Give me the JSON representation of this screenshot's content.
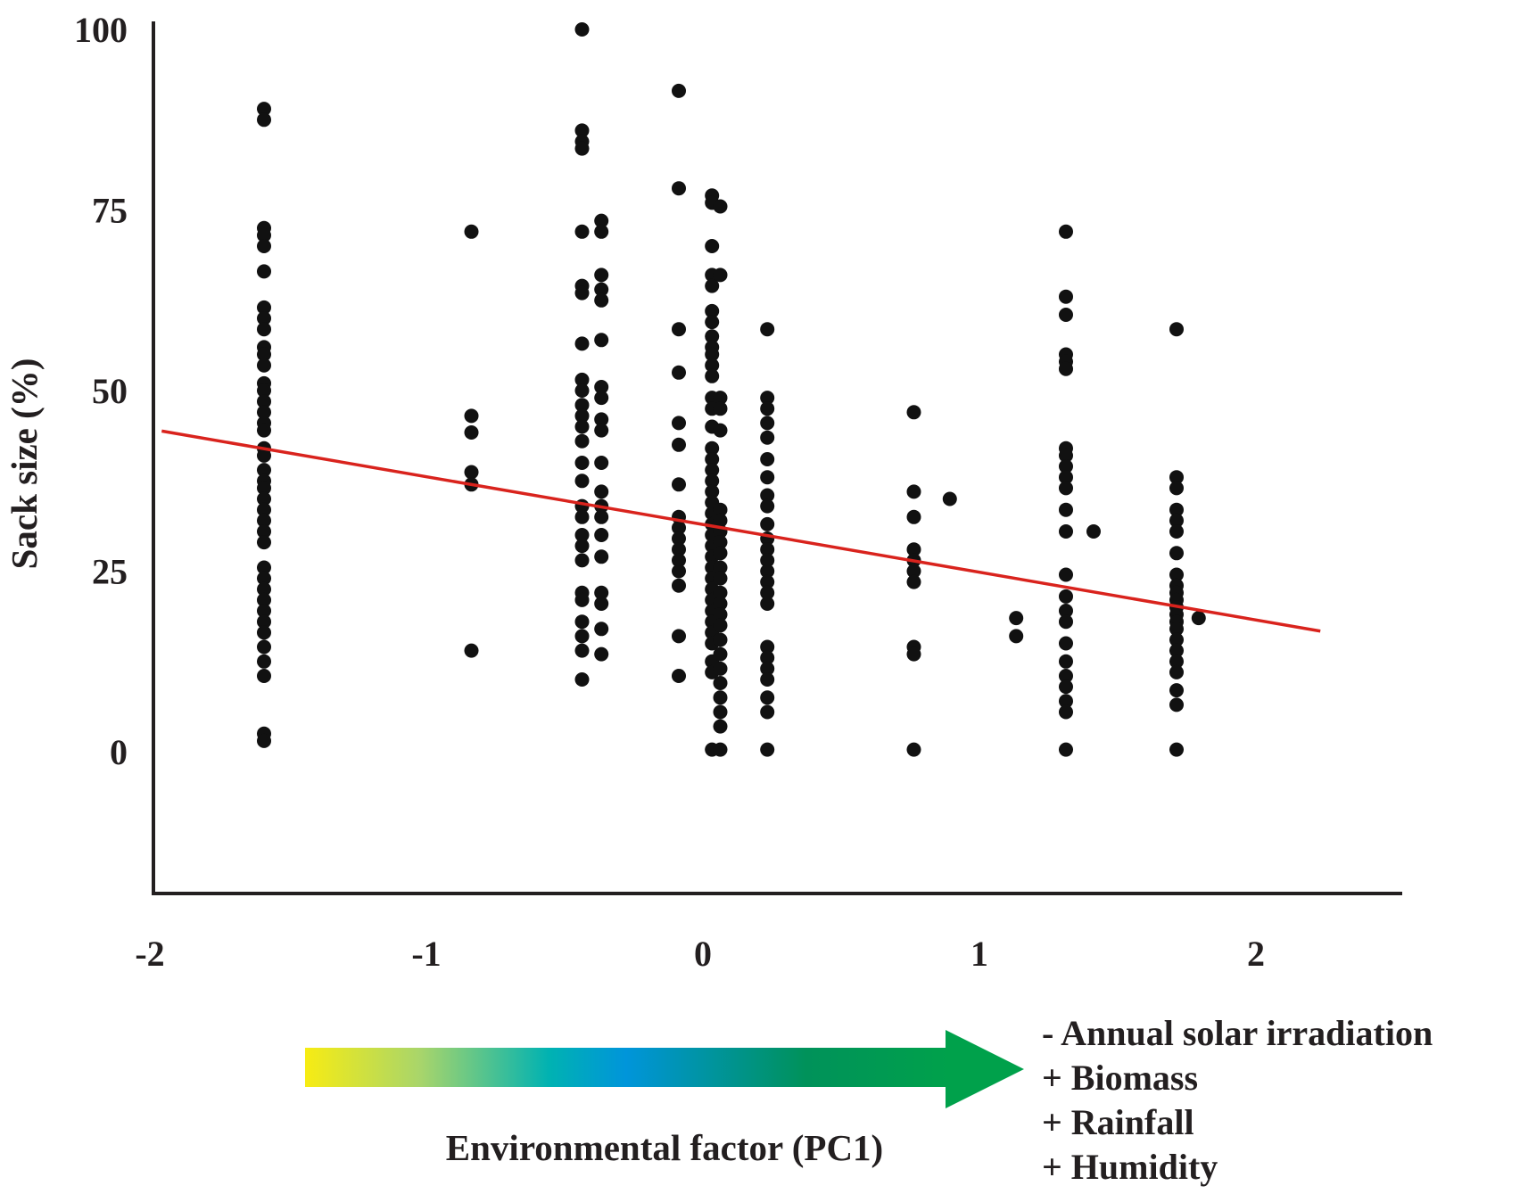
{
  "chart_data": {
    "type": "scatter",
    "title": "",
    "ylabel": "Sack size (%)",
    "xlabel": "Environmental factor (PC1)",
    "xlim": [
      -2,
      2.5
    ],
    "ylim": [
      -20,
      100
    ],
    "x_ticks": [
      -2,
      -1,
      0,
      1,
      2
    ],
    "y_ticks": [
      0,
      25,
      50,
      75,
      100
    ],
    "x_tick_labels": [
      "-2",
      "-1",
      "0",
      "1",
      "2"
    ],
    "y_tick_labels": [
      "0",
      "25",
      "50",
      "75",
      "100"
    ],
    "grid": false,
    "legend": "none",
    "colors": {
      "points": "#111111",
      "trendline": "#d9231d",
      "axes": "#231f20"
    },
    "trendline": {
      "x": [
        -1.97,
        2.22
      ],
      "y": [
        44.4,
        16.7
      ]
    },
    "gradient_arrow": {
      "colors": [
        "#f7ec13",
        "#a8d56b",
        "#00b2b2",
        "#0095da",
        "#00925a",
        "#00a14b"
      ],
      "factors": [
        "- Annual solar irradiation",
        "+ Biomass",
        "+ Rainfall",
        "+ Humidity"
      ]
    },
    "series": [
      {
        "name": "",
        "points": [
          [
            -1.6,
            89
          ],
          [
            -1.6,
            87.5
          ],
          [
            -1.6,
            72.5
          ],
          [
            -1.6,
            71.5
          ],
          [
            -1.6,
            70
          ],
          [
            -1.6,
            66.5
          ],
          [
            -1.6,
            61.5
          ],
          [
            -1.6,
            60
          ],
          [
            -1.6,
            58.5
          ],
          [
            -1.6,
            56
          ],
          [
            -1.6,
            55
          ],
          [
            -1.6,
            53.5
          ],
          [
            -1.6,
            51
          ],
          [
            -1.6,
            50
          ],
          [
            -1.6,
            48.5
          ],
          [
            -1.6,
            47
          ],
          [
            -1.6,
            45.5
          ],
          [
            -1.6,
            44.5
          ],
          [
            -1.6,
            42
          ],
          [
            -1.6,
            41
          ],
          [
            -1.6,
            39
          ],
          [
            -1.6,
            37.5
          ],
          [
            -1.6,
            36.5
          ],
          [
            -1.6,
            35
          ],
          [
            -1.6,
            33.5
          ],
          [
            -1.6,
            32
          ],
          [
            -1.6,
            30.5
          ],
          [
            -1.6,
            29
          ],
          [
            -1.6,
            25.5
          ],
          [
            -1.6,
            24
          ],
          [
            -1.6,
            22.5
          ],
          [
            -1.6,
            21
          ],
          [
            -1.6,
            19.5
          ],
          [
            -1.6,
            18
          ],
          [
            -1.6,
            16.5
          ],
          [
            -1.6,
            14.5
          ],
          [
            -1.6,
            12.5
          ],
          [
            -1.6,
            10.5
          ],
          [
            -1.6,
            2.5
          ],
          [
            -1.6,
            1.5
          ],
          [
            -0.85,
            72
          ],
          [
            -0.85,
            46.5
          ],
          [
            -0.85,
            44.2
          ],
          [
            -0.85,
            38.7
          ],
          [
            -0.85,
            37
          ],
          [
            -0.85,
            14
          ],
          [
            -0.45,
            100
          ],
          [
            -0.45,
            86
          ],
          [
            -0.45,
            84.5
          ],
          [
            -0.45,
            83.5
          ],
          [
            -0.45,
            72
          ],
          [
            -0.45,
            64.5
          ],
          [
            -0.45,
            63.5
          ],
          [
            -0.45,
            56.5
          ],
          [
            -0.45,
            51.5
          ],
          [
            -0.45,
            50
          ],
          [
            -0.45,
            48
          ],
          [
            -0.45,
            46.5
          ],
          [
            -0.45,
            45
          ],
          [
            -0.45,
            43
          ],
          [
            -0.45,
            40
          ],
          [
            -0.45,
            37.5
          ],
          [
            -0.45,
            34
          ],
          [
            -0.45,
            32.5
          ],
          [
            -0.45,
            30
          ],
          [
            -0.45,
            28.5
          ],
          [
            -0.45,
            26.5
          ],
          [
            -0.45,
            22
          ],
          [
            -0.45,
            21
          ],
          [
            -0.45,
            18
          ],
          [
            -0.45,
            16
          ],
          [
            -0.45,
            14
          ],
          [
            -0.45,
            10
          ],
          [
            -0.38,
            73.5
          ],
          [
            -0.38,
            72
          ],
          [
            -0.38,
            66
          ],
          [
            -0.38,
            64
          ],
          [
            -0.38,
            62.5
          ],
          [
            -0.38,
            57
          ],
          [
            -0.38,
            50.5
          ],
          [
            -0.38,
            49
          ],
          [
            -0.38,
            46
          ],
          [
            -0.38,
            44.5
          ],
          [
            -0.38,
            40
          ],
          [
            -0.38,
            36
          ],
          [
            -0.38,
            34
          ],
          [
            -0.38,
            32.5
          ],
          [
            -0.38,
            30
          ],
          [
            -0.38,
            27
          ],
          [
            -0.38,
            22
          ],
          [
            -0.38,
            20.5
          ],
          [
            -0.38,
            17
          ],
          [
            -0.38,
            13.5
          ],
          [
            -0.1,
            91.5
          ],
          [
            -0.1,
            78
          ],
          [
            -0.1,
            58.5
          ],
          [
            -0.1,
            52.5
          ],
          [
            -0.1,
            45.5
          ],
          [
            -0.1,
            42.5
          ],
          [
            -0.1,
            37
          ],
          [
            -0.1,
            32.5
          ],
          [
            -0.1,
            31
          ],
          [
            -0.1,
            29.5
          ],
          [
            -0.1,
            28
          ],
          [
            -0.1,
            26.5
          ],
          [
            -0.1,
            25
          ],
          [
            -0.1,
            23
          ],
          [
            -0.1,
            16
          ],
          [
            -0.1,
            10.5
          ],
          [
            0.02,
            77
          ],
          [
            0.02,
            76
          ],
          [
            0.02,
            70
          ],
          [
            0.02,
            66
          ],
          [
            0.02,
            64.5
          ],
          [
            0.02,
            61
          ],
          [
            0.02,
            59.5
          ],
          [
            0.02,
            57.5
          ],
          [
            0.02,
            56
          ],
          [
            0.02,
            55
          ],
          [
            0.02,
            53.5
          ],
          [
            0.02,
            52
          ],
          [
            0.02,
            49
          ],
          [
            0.02,
            47.5
          ],
          [
            0.02,
            45
          ],
          [
            0.02,
            42
          ],
          [
            0.02,
            40.5
          ],
          [
            0.02,
            39
          ],
          [
            0.02,
            37.5
          ],
          [
            0.02,
            36
          ],
          [
            0.02,
            34.5
          ],
          [
            0.02,
            33
          ],
          [
            0.02,
            31.5
          ],
          [
            0.02,
            30
          ],
          [
            0.02,
            28.5
          ],
          [
            0.02,
            27
          ],
          [
            0.02,
            25.5
          ],
          [
            0.02,
            24
          ],
          [
            0.02,
            22.5
          ],
          [
            0.02,
            21
          ],
          [
            0.02,
            19.5
          ],
          [
            0.02,
            18
          ],
          [
            0.02,
            16.5
          ],
          [
            0.02,
            15
          ],
          [
            0.02,
            12.5
          ],
          [
            0.02,
            11
          ],
          [
            0.02,
            0.3
          ],
          [
            0.05,
            75.5
          ],
          [
            0.05,
            66
          ],
          [
            0.05,
            49
          ],
          [
            0.05,
            47.5
          ],
          [
            0.05,
            44.5
          ],
          [
            0.05,
            33.5
          ],
          [
            0.05,
            32
          ],
          [
            0.05,
            30.5
          ],
          [
            0.05,
            29
          ],
          [
            0.05,
            27.5
          ],
          [
            0.05,
            25.5
          ],
          [
            0.05,
            24
          ],
          [
            0.05,
            22
          ],
          [
            0.05,
            20.5
          ],
          [
            0.05,
            19
          ],
          [
            0.05,
            17.5
          ],
          [
            0.05,
            15.5
          ],
          [
            0.05,
            13.5
          ],
          [
            0.05,
            11.5
          ],
          [
            0.05,
            9.5
          ],
          [
            0.05,
            7.5
          ],
          [
            0.05,
            5.5
          ],
          [
            0.05,
            3.5
          ],
          [
            0.05,
            0.3
          ],
          [
            0.22,
            58.5
          ],
          [
            0.22,
            49
          ],
          [
            0.22,
            47.5
          ],
          [
            0.22,
            45.5
          ],
          [
            0.22,
            43.5
          ],
          [
            0.22,
            40.5
          ],
          [
            0.22,
            38
          ],
          [
            0.22,
            35.5
          ],
          [
            0.22,
            34
          ],
          [
            0.22,
            31.5
          ],
          [
            0.22,
            29.5
          ],
          [
            0.22,
            28
          ],
          [
            0.22,
            26.5
          ],
          [
            0.22,
            25
          ],
          [
            0.22,
            23.5
          ],
          [
            0.22,
            22
          ],
          [
            0.22,
            20.5
          ],
          [
            0.22,
            14.5
          ],
          [
            0.22,
            13
          ],
          [
            0.22,
            11.5
          ],
          [
            0.22,
            10
          ],
          [
            0.22,
            7.5
          ],
          [
            0.22,
            5.5
          ],
          [
            0.22,
            0.3
          ],
          [
            0.75,
            47
          ],
          [
            0.75,
            36
          ],
          [
            0.75,
            32.5
          ],
          [
            0.75,
            28
          ],
          [
            0.75,
            26.5
          ],
          [
            0.75,
            25
          ],
          [
            0.75,
            23.5
          ],
          [
            0.75,
            14.5
          ],
          [
            0.75,
            13.5
          ],
          [
            0.75,
            0.3
          ],
          [
            0.88,
            35
          ],
          [
            1.12,
            18.5
          ],
          [
            1.12,
            16
          ],
          [
            1.3,
            72
          ],
          [
            1.3,
            63
          ],
          [
            1.3,
            60.5
          ],
          [
            1.3,
            55
          ],
          [
            1.3,
            54
          ],
          [
            1.3,
            53
          ],
          [
            1.3,
            42
          ],
          [
            1.3,
            41
          ],
          [
            1.3,
            39.5
          ],
          [
            1.3,
            38
          ],
          [
            1.3,
            36.5
          ],
          [
            1.3,
            33.5
          ],
          [
            1.3,
            30.5
          ],
          [
            1.3,
            24.5
          ],
          [
            1.3,
            21.5
          ],
          [
            1.3,
            19.5
          ],
          [
            1.3,
            18
          ],
          [
            1.3,
            15
          ],
          [
            1.3,
            12.5
          ],
          [
            1.3,
            10.5
          ],
          [
            1.3,
            9
          ],
          [
            1.3,
            7
          ],
          [
            1.3,
            5.5
          ],
          [
            1.3,
            0.3
          ],
          [
            1.4,
            30.5
          ],
          [
            1.7,
            58.5
          ],
          [
            1.7,
            38
          ],
          [
            1.7,
            36.5
          ],
          [
            1.7,
            33.5
          ],
          [
            1.7,
            32
          ],
          [
            1.7,
            30.5
          ],
          [
            1.7,
            27.5
          ],
          [
            1.7,
            24.5
          ],
          [
            1.7,
            23
          ],
          [
            1.7,
            22
          ],
          [
            1.7,
            21
          ],
          [
            1.7,
            20
          ],
          [
            1.7,
            19
          ],
          [
            1.7,
            18
          ],
          [
            1.7,
            17
          ],
          [
            1.7,
            15.5
          ],
          [
            1.7,
            14
          ],
          [
            1.7,
            12.5
          ],
          [
            1.7,
            11
          ],
          [
            1.7,
            8.5
          ],
          [
            1.7,
            6.5
          ],
          [
            1.7,
            0.3
          ],
          [
            1.78,
            18.5
          ]
        ]
      }
    ]
  }
}
